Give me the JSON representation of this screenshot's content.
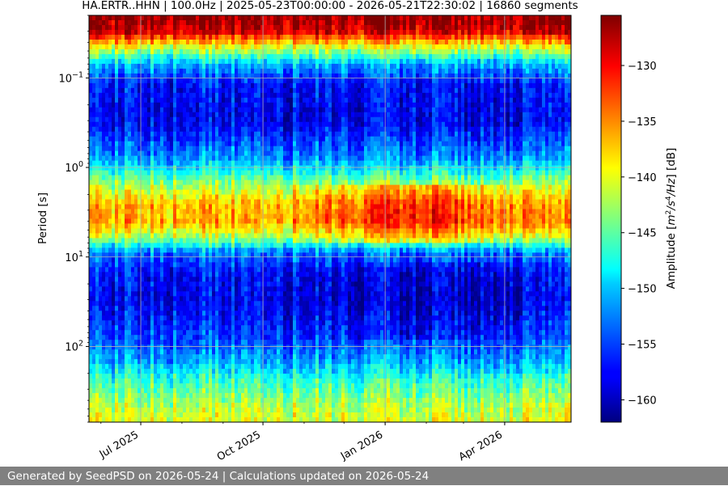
{
  "chart_data": {
    "type": "heatmap",
    "title": "HA.ERTR..HHN | 100.0Hz | 2025-05-23T00:00:00 - 2026-05-21T22:30:02 | 16860 segments",
    "xlabel": "",
    "ylabel": "Period [s]",
    "y_scale": "log",
    "y_inverted": true,
    "ylim": [
      0.02,
      700
    ],
    "y_ticks": [
      {
        "value": 0.1,
        "base": "10",
        "exp": "−1"
      },
      {
        "value": 1,
        "base": "10",
        "exp": "0"
      },
      {
        "value": 10,
        "base": "10",
        "exp": "1"
      },
      {
        "value": 100,
        "base": "10",
        "exp": "2"
      }
    ],
    "xlim": [
      "2025-05-23",
      "2026-05-21"
    ],
    "x_ticks": [
      {
        "date": "2025-07-01",
        "label": "Jul 2025"
      },
      {
        "date": "2025-10-01",
        "label": "Oct 2025"
      },
      {
        "date": "2026-01-01",
        "label": "Jan 2026"
      },
      {
        "date": "2026-04-01",
        "label": "Apr 2026"
      }
    ],
    "grid": true,
    "colormap": "jet",
    "colorbar": {
      "label": "Amplitude [m²/s⁴/Hz] [dB]",
      "label_parts": {
        "prefix": "Amplitude [",
        "unit_m": "m",
        "exp_m": "2",
        "unit_s": "/s",
        "exp_s": "4",
        "unit_hz": "/Hz",
        "suffix": "] [dB]"
      },
      "range": [
        -162,
        -125.5
      ],
      "ticks": [
        -130,
        -135,
        -140,
        -145,
        -150,
        -155,
        -160
      ],
      "tick_labels": [
        "−130",
        "−135",
        "−140",
        "−145",
        "−150",
        "−155",
        "−160"
      ]
    },
    "amplitude_profile_db": [
      {
        "period": 0.02,
        "db": -126
      },
      {
        "period": 0.03,
        "db": -128
      },
      {
        "period": 0.045,
        "db": -140
      },
      {
        "period": 0.07,
        "db": -151
      },
      {
        "period": 0.12,
        "db": -157
      },
      {
        "period": 0.3,
        "db": -158
      },
      {
        "period": 0.8,
        "db": -152
      },
      {
        "period": 1.5,
        "db": -143
      },
      {
        "period": 2.5,
        "db": -137
      },
      {
        "period": 4,
        "db": -136
      },
      {
        "period": 6,
        "db": -142
      },
      {
        "period": 9,
        "db": -153
      },
      {
        "period": 15,
        "db": -157
      },
      {
        "period": 30,
        "db": -158
      },
      {
        "period": 80,
        "db": -155
      },
      {
        "period": 150,
        "db": -151
      },
      {
        "period": 250,
        "db": -146
      },
      {
        "period": 450,
        "db": -142
      },
      {
        "period": 700,
        "db": -140
      }
    ]
  },
  "footer": {
    "text": "Generated by SeedPSD on 2026-05-24 | Calculations updated on 2026-05-24"
  }
}
